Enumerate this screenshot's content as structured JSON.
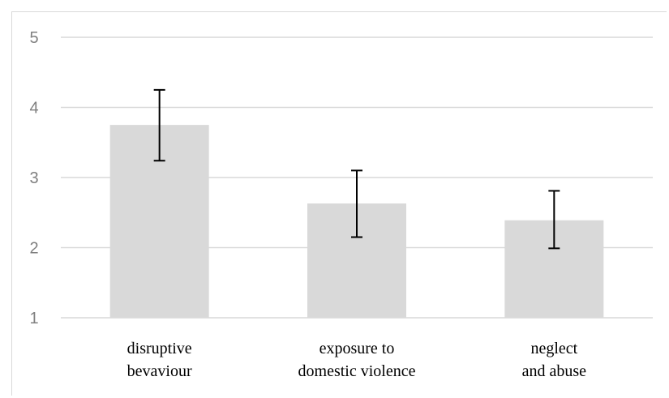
{
  "chart_data": {
    "type": "bar",
    "title": "",
    "xlabel": "",
    "ylabel": "",
    "ylim": [
      1,
      5
    ],
    "yticks": [
      "1",
      "2",
      "3",
      "4",
      "5"
    ],
    "categories": [
      [
        "disruptive",
        "bevaviour"
      ],
      [
        "exposure to",
        "domestic violence"
      ],
      [
        "neglect",
        "and abuse"
      ]
    ],
    "values": [
      3.75,
      2.63,
      2.39
    ],
    "error_low": [
      3.24,
      2.15,
      1.99
    ],
    "error_high": [
      4.25,
      3.1,
      2.81
    ],
    "grid": true,
    "colors": {
      "bar": "#d9d9d9",
      "grid": "#d9d9d9",
      "error_bar": "#000000",
      "tick_label": "#7f7f7f"
    }
  }
}
